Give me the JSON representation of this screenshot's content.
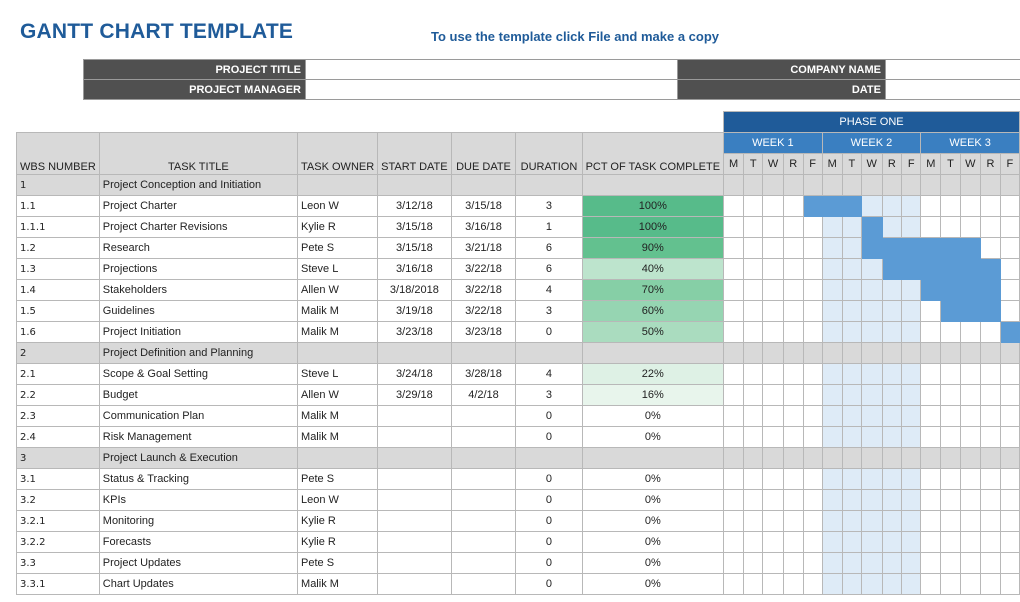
{
  "header": {
    "title": "GANTT CHART TEMPLATE",
    "instruction": "To use the template click File and make a copy"
  },
  "info": {
    "project_title_label": "PROJECT TITLE",
    "project_manager_label": "PROJECT MANAGER",
    "company_name_label": "COMPANY NAME",
    "date_label": "DATE"
  },
  "columns": {
    "wbs": "WBS NUMBER",
    "task_title": "TASK TITLE",
    "task_owner": "TASK OWNER",
    "start_date": "START DATE",
    "due_date": "DUE DATE",
    "duration": "DURATION",
    "pct": "PCT OF TASK COMPLETE"
  },
  "timeline": {
    "phase": "PHASE ONE",
    "weeks": [
      "WEEK 1",
      "WEEK 2",
      "WEEK 3"
    ],
    "days": [
      "M",
      "T",
      "W",
      "R",
      "F",
      "M",
      "T",
      "W",
      "R",
      "F",
      "M",
      "T",
      "W",
      "R",
      "F"
    ]
  },
  "colors": {
    "pct_100": "#57bb8a",
    "pct_90": "#63c18f",
    "pct_70": "#86cfa6",
    "pct_60": "#96d5b2",
    "pct_50": "#aadcbf",
    "pct_40": "#bde4cd",
    "pct_22": "#def1e5",
    "pct_16": "#e8f5ec",
    "bar": "#5b9bd5"
  },
  "tasks": [
    {
      "wbs": "1",
      "title": "Project Conception and Initiation",
      "owner": "",
      "start": "",
      "due": "",
      "duration": "",
      "pct": "",
      "section": true,
      "bars": []
    },
    {
      "wbs": "1.1",
      "title": "Project Charter",
      "owner": "Leon W",
      "start": "3/12/18",
      "due": "3/15/18",
      "duration": "3",
      "pct": "100%",
      "section": false,
      "bars": [
        4,
        5,
        6
      ]
    },
    {
      "wbs": "1.1.1",
      "title": "Project Charter Revisions",
      "owner": "Kylie R",
      "start": "3/15/18",
      "due": "3/16/18",
      "duration": "1",
      "pct": "100%",
      "section": false,
      "bars": [
        7
      ]
    },
    {
      "wbs": "1.2",
      "title": "Research",
      "owner": "Pete S",
      "start": "3/15/18",
      "due": "3/21/18",
      "duration": "6",
      "pct": "90%",
      "section": false,
      "bars": [
        7,
        8,
        9,
        10,
        11,
        12
      ]
    },
    {
      "wbs": "1.3",
      "title": "Projections",
      "owner": "Steve L",
      "start": "3/16/18",
      "due": "3/22/18",
      "duration": "6",
      "pct": "40%",
      "section": false,
      "bars": [
        8,
        9,
        10,
        11,
        12,
        13
      ]
    },
    {
      "wbs": "1.4",
      "title": "Stakeholders",
      "owner": "Allen W",
      "start": "3/18/2018",
      "due": "3/22/18",
      "duration": "4",
      "pct": "70%",
      "section": false,
      "bars": [
        10,
        11,
        12,
        13
      ]
    },
    {
      "wbs": "1.5",
      "title": "Guidelines",
      "owner": "Malik M",
      "start": "3/19/18",
      "due": "3/22/18",
      "duration": "3",
      "pct": "60%",
      "section": false,
      "bars": [
        11,
        12,
        13
      ]
    },
    {
      "wbs": "1.6",
      "title": "Project Initiation",
      "owner": "Malik M",
      "start": "3/23/18",
      "due": "3/23/18",
      "duration": "0",
      "pct": "50%",
      "section": false,
      "bars": [
        14
      ]
    },
    {
      "wbs": "2",
      "title": "Project Definition and Planning",
      "owner": "",
      "start": "",
      "due": "",
      "duration": "",
      "pct": "",
      "section": true,
      "bars": []
    },
    {
      "wbs": "2.1",
      "title": "Scope & Goal Setting",
      "owner": "Steve L",
      "start": "3/24/18",
      "due": "3/28/18",
      "duration": "4",
      "pct": "22%",
      "section": false,
      "bars": []
    },
    {
      "wbs": "2.2",
      "title": "Budget",
      "owner": "Allen W",
      "start": "3/29/18",
      "due": "4/2/18",
      "duration": "3",
      "pct": "16%",
      "section": false,
      "bars": []
    },
    {
      "wbs": "2.3",
      "title": "Communication Plan",
      "owner": "Malik M",
      "start": "",
      "due": "",
      "duration": "0",
      "pct": "0%",
      "section": false,
      "bars": []
    },
    {
      "wbs": "2.4",
      "title": "Risk Management",
      "owner": "Malik M",
      "start": "",
      "due": "",
      "duration": "0",
      "pct": "0%",
      "section": false,
      "bars": []
    },
    {
      "wbs": "3",
      "title": "Project Launch & Execution",
      "owner": "",
      "start": "",
      "due": "",
      "duration": "",
      "pct": "",
      "section": true,
      "bars": []
    },
    {
      "wbs": "3.1",
      "title": "Status & Tracking",
      "owner": "Pete S",
      "start": "",
      "due": "",
      "duration": "0",
      "pct": "0%",
      "section": false,
      "bars": []
    },
    {
      "wbs": "3.2",
      "title": "KPIs",
      "owner": "Leon W",
      "start": "",
      "due": "",
      "duration": "0",
      "pct": "0%",
      "section": false,
      "bars": []
    },
    {
      "wbs": "3.2.1",
      "title": "Monitoring",
      "owner": "Kylie R",
      "start": "",
      "due": "",
      "duration": "0",
      "pct": "0%",
      "section": false,
      "bars": []
    },
    {
      "wbs": "3.2.2",
      "title": "Forecasts",
      "owner": "Kylie R",
      "start": "",
      "due": "",
      "duration": "0",
      "pct": "0%",
      "section": false,
      "bars": []
    },
    {
      "wbs": "3.3",
      "title": "Project Updates",
      "owner": "Pete S",
      "start": "",
      "due": "",
      "duration": "0",
      "pct": "0%",
      "section": false,
      "bars": []
    },
    {
      "wbs": "3.3.1",
      "title": "Chart Updates",
      "owner": "Malik M",
      "start": "",
      "due": "",
      "duration": "0",
      "pct": "0%",
      "section": false,
      "bars": []
    }
  ]
}
